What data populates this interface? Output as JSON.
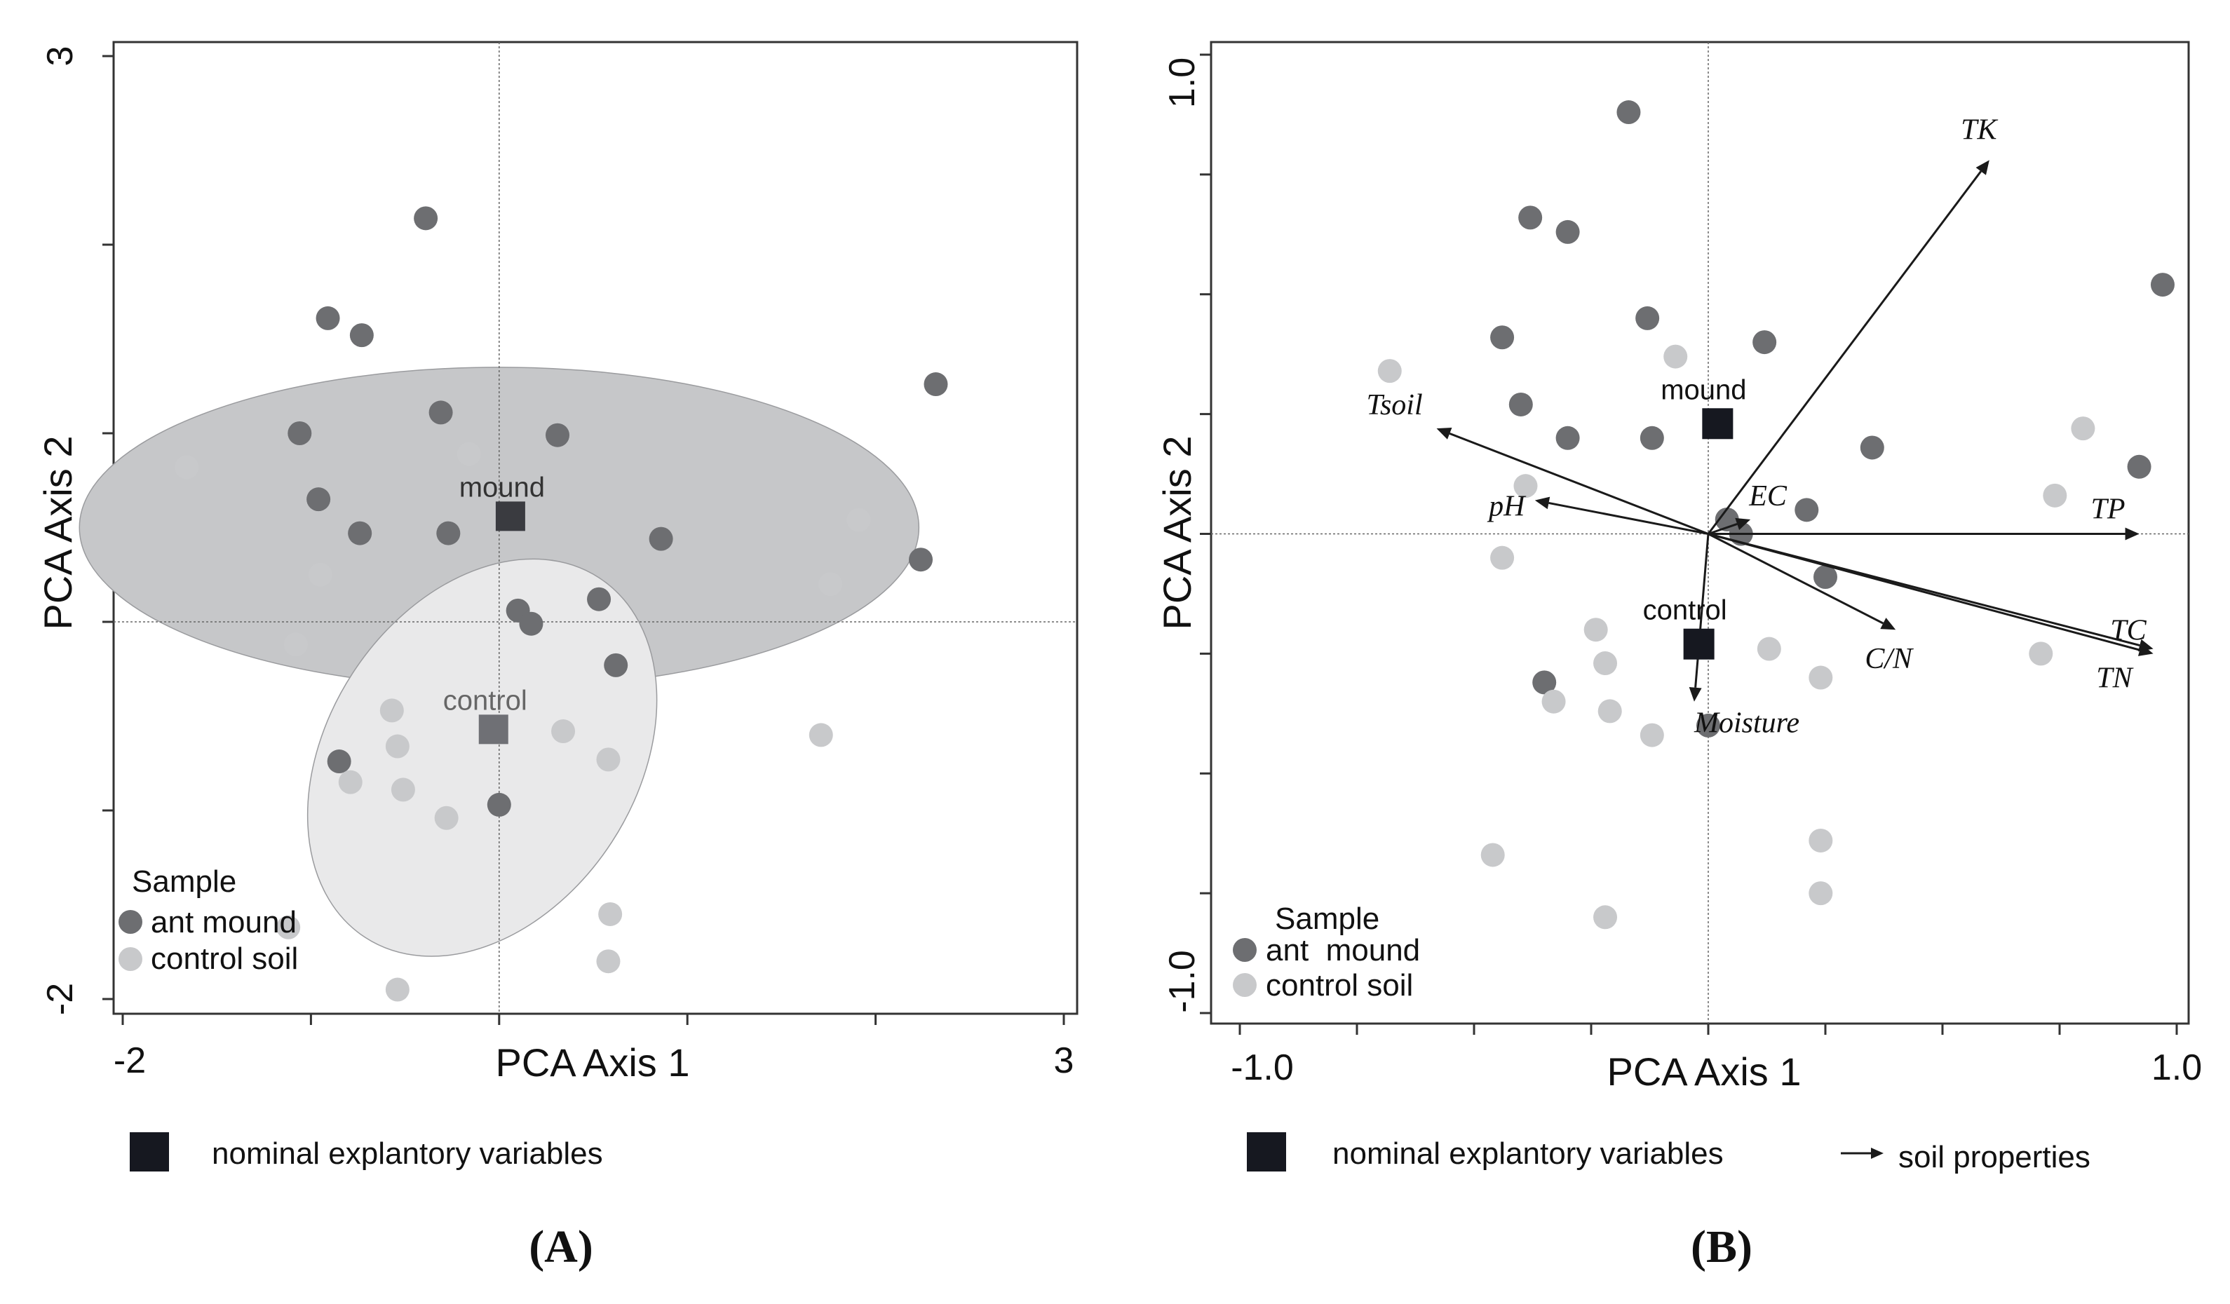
{
  "chart_data": [
    {
      "type": "scatter",
      "panel_label": "(A)",
      "xlabel": "PCA Axis 1",
      "ylabel": "PCA Axis 2",
      "xlim": [
        -2,
        3
      ],
      "ylim": [
        -2,
        3
      ],
      "x_tick_labels": [
        "-2",
        "3"
      ],
      "y_tick_labels": [
        "3",
        "-2"
      ],
      "legend": {
        "title": "Sample",
        "entries": [
          "ant mound",
          "control soil"
        ]
      },
      "footer_legend": [
        "nominal explantory variables"
      ],
      "colors": {
        "ant_mound": "#6d6e71",
        "control_soil": "#c8c9cb",
        "centroid_mound": "#3a3b40",
        "centroid_control": "#6f7075",
        "ellipse_mound": "#c6c7c9",
        "ellipse_control": "#e9e9ea"
      },
      "centroids": [
        {
          "label": "mound",
          "x": 0.06,
          "y": 0.56
        },
        {
          "label": "control",
          "x": -0.03,
          "y": -0.57
        }
      ],
      "ellipses": [
        {
          "group": "mound",
          "cx": 0.0,
          "cy": 0.5,
          "rx": 2.23,
          "ry": 0.85,
          "angle": 0
        },
        {
          "group": "control",
          "cx": -0.09,
          "cy": -0.72,
          "rx": 1.14,
          "ry": 0.82,
          "angle": 57
        }
      ],
      "series": [
        {
          "name": "ant mound",
          "points": [
            [
              -0.39,
              2.14
            ],
            [
              -0.91,
              1.61
            ],
            [
              -0.73,
              1.52
            ],
            [
              -1.06,
              1.0
            ],
            [
              -0.31,
              1.11
            ],
            [
              0.31,
              0.99
            ],
            [
              2.32,
              1.26
            ],
            [
              -0.96,
              0.65
            ],
            [
              -0.74,
              0.47
            ],
            [
              -0.27,
              0.47
            ],
            [
              0.86,
              0.44
            ],
            [
              2.24,
              0.33
            ],
            [
              0.53,
              0.12
            ],
            [
              0.1,
              0.06
            ],
            [
              0.17,
              -0.01
            ],
            [
              0.62,
              -0.23
            ],
            [
              -0.85,
              -0.74
            ],
            [
              0.0,
              -0.97
            ]
          ]
        },
        {
          "name": "control soil",
          "points": [
            [
              -1.66,
              0.82
            ],
            [
              -0.16,
              0.89
            ],
            [
              1.91,
              0.54
            ],
            [
              -0.95,
              0.25
            ],
            [
              1.76,
              0.2
            ],
            [
              -1.08,
              -0.12
            ],
            [
              -0.57,
              -0.47
            ],
            [
              -0.54,
              -0.66
            ],
            [
              -0.79,
              -0.85
            ],
            [
              -0.51,
              -0.89
            ],
            [
              -0.28,
              -1.04
            ],
            [
              0.34,
              -0.58
            ],
            [
              0.58,
              -0.73
            ],
            [
              1.71,
              -0.6
            ],
            [
              0.59,
              -1.55
            ],
            [
              -1.12,
              -1.62
            ],
            [
              0.58,
              -1.8
            ],
            [
              -0.54,
              -1.95
            ]
          ]
        }
      ]
    },
    {
      "type": "scatter",
      "panel_label": "(B)",
      "xlabel": "PCA Axis 1",
      "ylabel": "PCA Axis 2",
      "xlim": [
        -1.0,
        1.0
      ],
      "ylim": [
        -1.0,
        1.0
      ],
      "x_tick_labels": [
        "-1.0",
        "1.0"
      ],
      "y_tick_labels": [
        "1.0",
        "-1.0"
      ],
      "legend": {
        "title": "Sample",
        "entries": [
          "ant  mound",
          "control soil"
        ]
      },
      "footer_legend": [
        "nominal explantory variables",
        "soil properties"
      ],
      "colors": {
        "ant_mound": "#6d6e71",
        "control_soil": "#c8c9cb",
        "centroid": "#161820",
        "arrow": "#1a1a1a"
      },
      "centroids": [
        {
          "label": "mound",
          "x": 0.02,
          "y": 0.23
        },
        {
          "label": "control",
          "x": -0.02,
          "y": -0.23
        }
      ],
      "vectors": [
        {
          "label": "TK",
          "x": 0.6,
          "y": 0.78
        },
        {
          "label": "Tsoil",
          "x": -0.58,
          "y": 0.22
        },
        {
          "label": "pH",
          "x": -0.37,
          "y": 0.07
        },
        {
          "label": "EC",
          "x": 0.09,
          "y": 0.03
        },
        {
          "label": "TP",
          "x": 0.92,
          "y": 0.0
        },
        {
          "label": "TC",
          "x": 0.95,
          "y": -0.25
        },
        {
          "label": "TN",
          "x": 0.95,
          "y": -0.24
        },
        {
          "label": "C/N",
          "x": 0.4,
          "y": -0.2
        },
        {
          "label": "Moisture",
          "x": -0.03,
          "y": -0.35
        }
      ],
      "series": [
        {
          "name": "ant mound",
          "points": [
            [
              -0.17,
              0.88
            ],
            [
              -0.38,
              0.66
            ],
            [
              -0.3,
              0.63
            ],
            [
              0.97,
              0.52
            ],
            [
              -0.13,
              0.45
            ],
            [
              -0.44,
              0.41
            ],
            [
              0.12,
              0.4
            ],
            [
              -0.4,
              0.27
            ],
            [
              -0.3,
              0.2
            ],
            [
              -0.12,
              0.2
            ],
            [
              0.35,
              0.18
            ],
            [
              0.92,
              0.14
            ],
            [
              0.21,
              0.05
            ],
            [
              0.04,
              0.03
            ],
            [
              0.07,
              0.0
            ],
            [
              0.25,
              -0.09
            ],
            [
              -0.35,
              -0.31
            ],
            [
              0.0,
              -0.4
            ]
          ]
        },
        {
          "name": "control soil",
          "points": [
            [
              -0.68,
              0.34
            ],
            [
              -0.07,
              0.37
            ],
            [
              0.8,
              0.22
            ],
            [
              -0.39,
              0.1
            ],
            [
              0.74,
              0.08
            ],
            [
              -0.44,
              -0.05
            ],
            [
              -0.24,
              -0.2
            ],
            [
              0.13,
              -0.24
            ],
            [
              -0.22,
              -0.27
            ],
            [
              0.24,
              -0.3
            ],
            [
              0.71,
              -0.25
            ],
            [
              -0.33,
              -0.35
            ],
            [
              -0.21,
              -0.37
            ],
            [
              -0.12,
              -0.42
            ],
            [
              0.24,
              -0.64
            ],
            [
              -0.46,
              -0.67
            ],
            [
              0.24,
              -0.75
            ],
            [
              -0.22,
              -0.8
            ]
          ]
        }
      ]
    }
  ]
}
